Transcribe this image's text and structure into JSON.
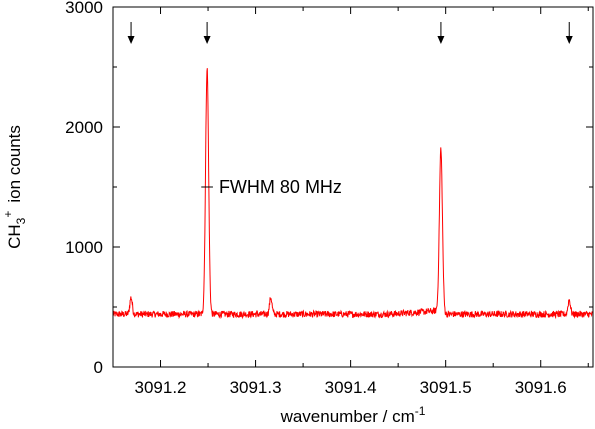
{
  "chart_data": {
    "type": "line",
    "xlabel": "wavenumber / cm",
    "xlabel_sup": "-1",
    "ylabel": "CH",
    "ylabel_sub": "3",
    "ylabel_sup": "+",
    "ylabel_rest": "ion counts",
    "xlim": [
      3091.15,
      3091.655
    ],
    "ylim": [
      0,
      3000
    ],
    "xticks": [
      3091.2,
      3091.3,
      3091.4,
      3091.5,
      3091.6
    ],
    "xtick_labels": [
      "3091.2",
      "3091.3",
      "3091.4",
      "3091.5",
      "3091.6"
    ],
    "yticks": [
      0,
      1000,
      2000,
      3000
    ],
    "ytick_labels": [
      "0",
      "1000",
      "2000",
      "3000"
    ],
    "grid": false,
    "line_color": "#ff0000",
    "baseline": 440,
    "peaks": [
      {
        "x": 3091.169,
        "height": 580
      },
      {
        "x": 3091.249,
        "height": 2490
      },
      {
        "x": 3091.316,
        "height": 580
      },
      {
        "x": 3091.495,
        "height": 1800
      },
      {
        "x": 3091.63,
        "height": 560
      }
    ],
    "arrow_markers_x": [
      3091.169,
      3091.249,
      3091.495,
      3091.63
    ],
    "annotation": {
      "text": "FWHM 80 MHz",
      "x": 3091.249,
      "y": 1500,
      "width_x": 0.0123
    }
  }
}
